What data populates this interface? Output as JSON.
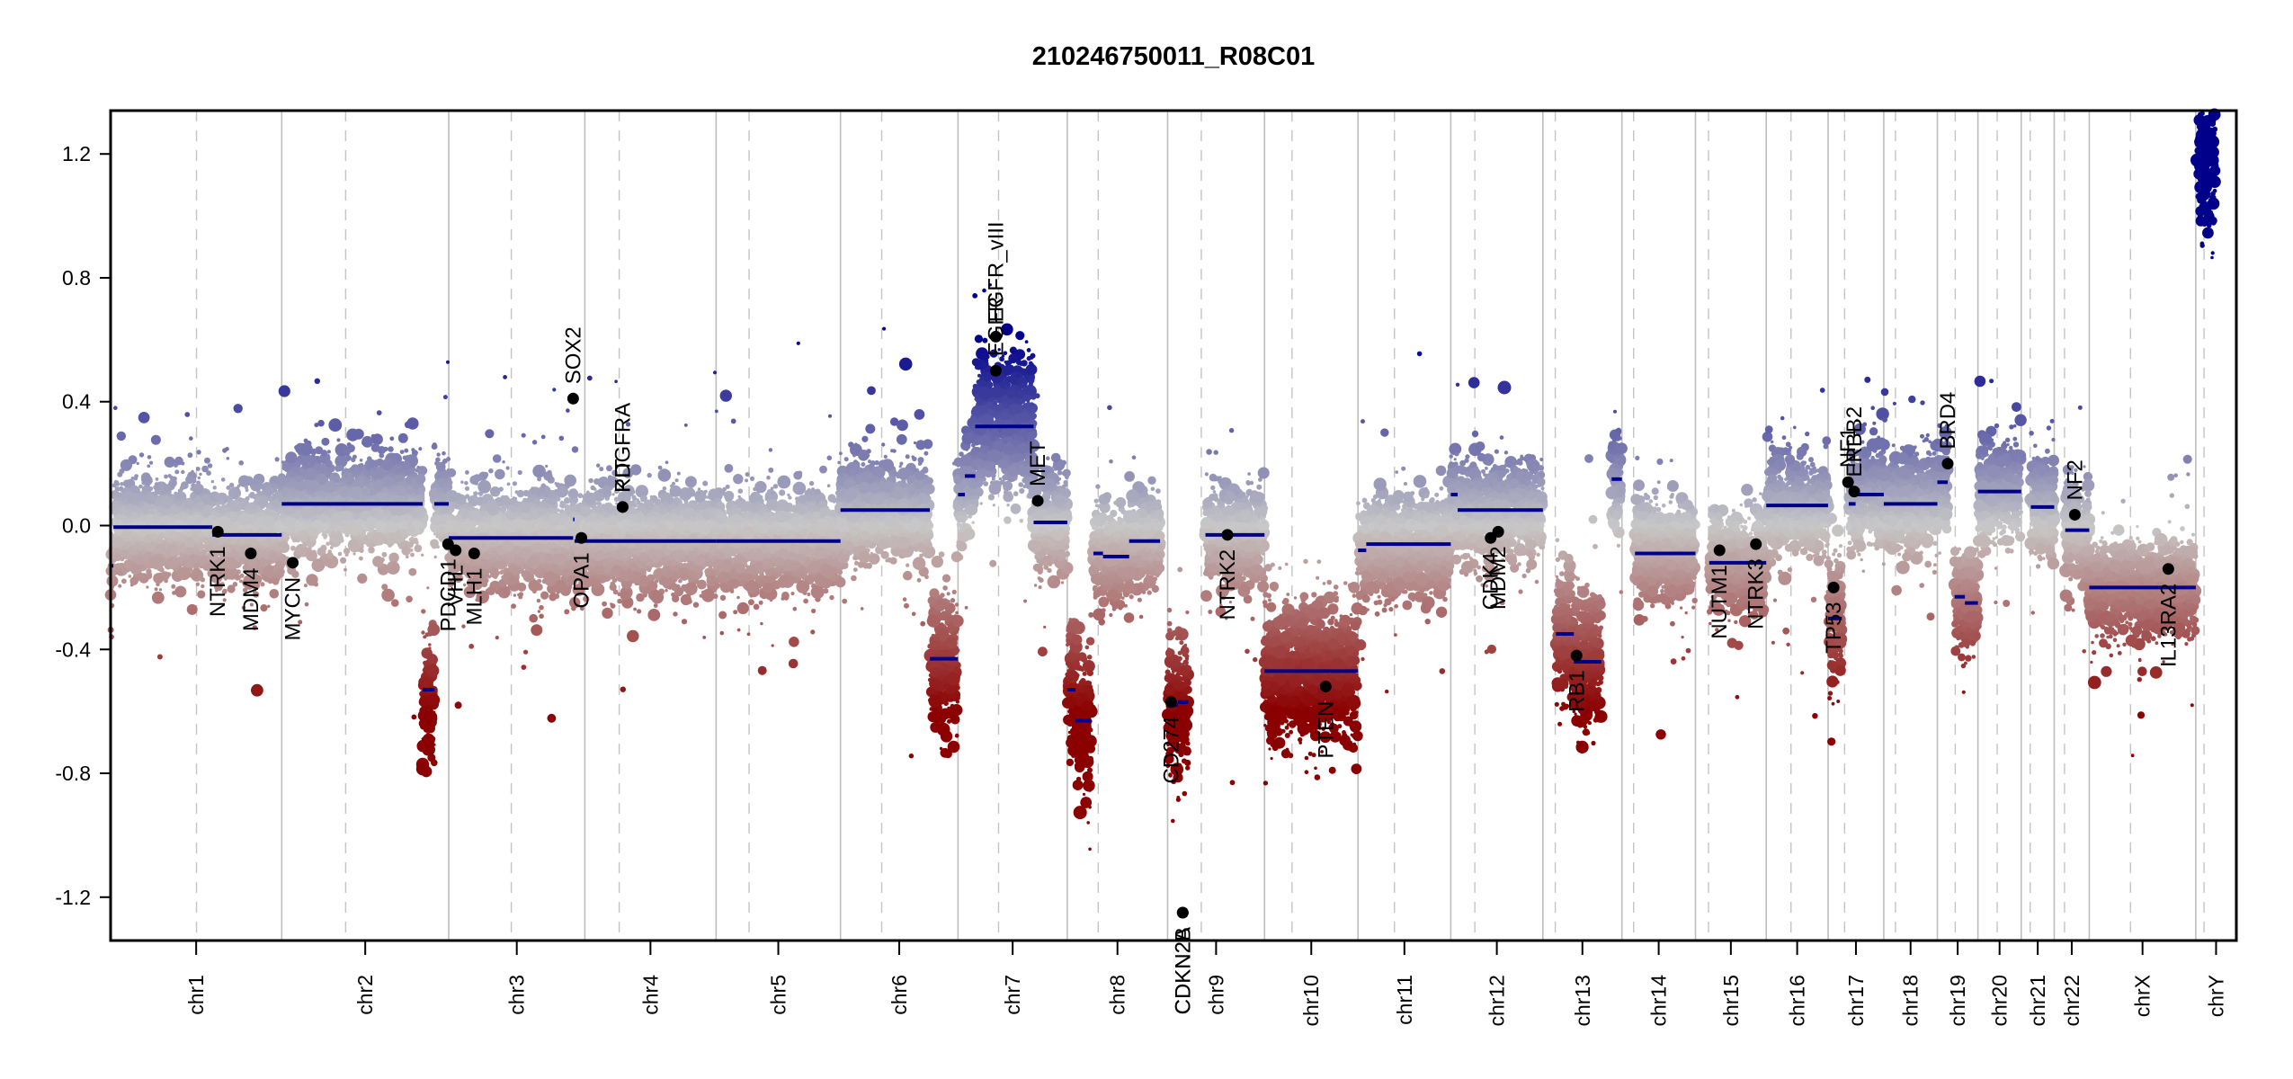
{
  "chart_data": {
    "type": "scatter",
    "title": "210246750011_R08C01",
    "xlabel": "",
    "ylabel": "",
    "ylim": [
      -1.34,
      1.34
    ],
    "yticks": [
      "-1.2",
      "-0.8",
      "-0.4",
      "0.0",
      "0.4",
      "0.8",
      "1.2"
    ],
    "ytick_values": [
      -1.2,
      -0.8,
      -0.4,
      0.0,
      0.4,
      0.8,
      1.2
    ],
    "grid": "chromosome boundaries (solid gray) and centromeres (dashed gray)",
    "colors": {
      "gain": "#00008b",
      "neutral": "#c8c8c8",
      "loss": "#8b0000",
      "segment": "#00008b",
      "gene_marker": "#000000",
      "boundary": "#bebebe"
    },
    "chromosomes": [
      {
        "name": "chr1",
        "length_mb": 249,
        "centromere_mb": 125,
        "segments": [
          [
            0,
            4,
            -0.13
          ],
          [
            4,
            148,
            -0.005
          ],
          [
            148,
            249,
            -0.03
          ]
        ],
        "bins_cn_profile": [
          [
            0,
            148,
            0.05
          ],
          [
            148,
            249,
            -0.02
          ]
        ]
      },
      {
        "name": "chr2",
        "length_mb": 243,
        "centromere_mb": 93,
        "segments": [
          [
            0,
            205,
            0.07
          ],
          [
            205,
            222,
            -0.53
          ],
          [
            222,
            243,
            0.07
          ]
        ]
      },
      {
        "name": "chr3",
        "length_mb": 198,
        "centromere_mb": 91,
        "segments": [
          [
            0,
            181,
            -0.04
          ],
          [
            181,
            183,
            0.02
          ],
          [
            183,
            198,
            -0.05
          ]
        ]
      },
      {
        "name": "chr4",
        "length_mb": 191,
        "centromere_mb": 50,
        "segments": [
          [
            0,
            191,
            -0.05
          ]
        ]
      },
      {
        "name": "chr5",
        "length_mb": 181,
        "centromere_mb": 48,
        "segments": [
          [
            0,
            181,
            -0.05
          ]
        ]
      },
      {
        "name": "chr6",
        "length_mb": 171,
        "centromere_mb": 60,
        "segments": [
          [
            0,
            130,
            0.05
          ],
          [
            130,
            171,
            -0.43
          ]
        ]
      },
      {
        "name": "chr7",
        "length_mb": 159,
        "centromere_mb": 59,
        "segments": [
          [
            0,
            10,
            0.1
          ],
          [
            10,
            25,
            0.16
          ],
          [
            25,
            110,
            0.32
          ],
          [
            110,
            159,
            0.01
          ]
        ]
      },
      {
        "name": "chr8",
        "length_mb": 146,
        "centromere_mb": 45,
        "segments": [
          [
            0,
            12,
            -0.53
          ],
          [
            12,
            35,
            -0.63
          ],
          [
            38,
            52,
            -0.09
          ],
          [
            52,
            90,
            -0.1
          ],
          [
            90,
            135,
            -0.05
          ]
        ]
      },
      {
        "name": "chr9",
        "length_mb": 141,
        "centromere_mb": 49,
        "segments": [
          [
            0,
            15,
            -0.58
          ],
          [
            15,
            30,
            -0.57
          ],
          [
            55,
            141,
            -0.03
          ]
        ]
      },
      {
        "name": "chr10",
        "length_mb": 136,
        "centromere_mb": 40,
        "segments": [
          [
            0,
            136,
            -0.47
          ]
        ]
      },
      {
        "name": "chr11",
        "length_mb": 135,
        "centromere_mb": 53,
        "segments": [
          [
            0,
            12,
            -0.08
          ],
          [
            12,
            135,
            -0.06
          ]
        ]
      },
      {
        "name": "chr12",
        "length_mb": 134,
        "centromere_mb": 35,
        "segments": [
          [
            0,
            10,
            0.1
          ],
          [
            10,
            134,
            0.05
          ]
        ]
      },
      {
        "name": "chr13",
        "length_mb": 115,
        "centromere_mb": 18,
        "segments": [
          [
            19,
            45,
            -0.35
          ],
          [
            45,
            85,
            -0.44
          ],
          [
            100,
            115,
            0.15
          ]
        ]
      },
      {
        "name": "chr14",
        "length_mb": 107,
        "centromere_mb": 17,
        "segments": [
          [
            19,
            107,
            -0.09
          ]
        ]
      },
      {
        "name": "chr15",
        "length_mb": 103,
        "centromere_mb": 19,
        "segments": [
          [
            20,
            103,
            -0.12
          ]
        ]
      },
      {
        "name": "chr16",
        "length_mb": 90,
        "centromere_mb": 36,
        "segments": [
          [
            0,
            90,
            0.065
          ]
        ]
      },
      {
        "name": "chr17",
        "length_mb": 81,
        "centromere_mb": 24,
        "segments": [
          [
            0,
            20,
            -0.3
          ],
          [
            30,
            40,
            0.07
          ],
          [
            40,
            81,
            0.1
          ]
        ]
      },
      {
        "name": "chr18",
        "length_mb": 78,
        "centromere_mb": 17,
        "segments": [
          [
            0,
            78,
            0.07
          ]
        ]
      },
      {
        "name": "chr19",
        "length_mb": 59,
        "centromere_mb": 26,
        "segments": [
          [
            0,
            15,
            0.14
          ],
          [
            25,
            40,
            -0.23
          ],
          [
            40,
            59,
            -0.25
          ]
        ]
      },
      {
        "name": "chr20",
        "length_mb": 63,
        "centromere_mb": 28,
        "segments": [
          [
            0,
            63,
            0.11
          ]
        ]
      },
      {
        "name": "chr21",
        "length_mb": 48,
        "centromere_mb": 13,
        "segments": [
          [
            14,
            48,
            0.06
          ]
        ]
      },
      {
        "name": "chr22",
        "length_mb": 51,
        "centromere_mb": 15,
        "segments": [
          [
            16,
            51,
            -0.015
          ]
        ]
      },
      {
        "name": "chrX",
        "length_mb": 155,
        "centromere_mb": 60,
        "segments": [
          [
            0,
            155,
            -0.2
          ]
        ]
      },
      {
        "name": "chrY",
        "length_mb": 59,
        "centromere_mb": 12,
        "segments": [
          [
            2,
            28,
            1.19
          ]
        ]
      }
    ],
    "genes": [
      {
        "name": "NTRK1",
        "chrom": "chr1",
        "pos_mb": 156,
        "value": -0.02
      },
      {
        "name": "MDM4",
        "chrom": "chr1",
        "pos_mb": 204,
        "value": -0.09
      },
      {
        "name": "MYCN",
        "chrom": "chr2",
        "pos_mb": 16,
        "value": -0.12
      },
      {
        "name": "PDCD1",
        "chrom": "chr2",
        "pos_mb": 242,
        "value": -0.06
      },
      {
        "name": "VHL",
        "chrom": "chr3",
        "pos_mb": 10,
        "value": -0.08
      },
      {
        "name": "MLH1",
        "chrom": "chr3",
        "pos_mb": 37,
        "value": -0.09
      },
      {
        "name": "SOX2",
        "chrom": "chr3",
        "pos_mb": 181,
        "value": 0.41
      },
      {
        "name": "OPA1",
        "chrom": "chr3",
        "pos_mb": 193,
        "value": -0.04
      },
      {
        "name": "PDGFRA",
        "chrom": "chr4",
        "pos_mb": 55,
        "value": 0.06
      },
      {
        "name": "KIT",
        "chrom": "chr4",
        "pos_mb": 55,
        "value": 0.06
      },
      {
        "name": "EGFR",
        "chrom": "chr7",
        "pos_mb": 55,
        "value": 0.5
      },
      {
        "name": "EGFR_vIII",
        "chrom": "chr7",
        "pos_mb": 55,
        "value": 0.61
      },
      {
        "name": "MET",
        "chrom": "chr7",
        "pos_mb": 116,
        "value": 0.08
      },
      {
        "name": "CD274",
        "chrom": "chr9",
        "pos_mb": 5,
        "value": -0.57
      },
      {
        "name": "CDKN2A",
        "chrom": "chr9",
        "pos_mb": 22,
        "value": -1.25
      },
      {
        "name": "CDKN2B",
        "chrom": "chr9",
        "pos_mb": 22,
        "value": -1.25
      },
      {
        "name": "NTRK2",
        "chrom": "chr9",
        "pos_mb": 87,
        "value": -0.03
      },
      {
        "name": "PTEN",
        "chrom": "chr10",
        "pos_mb": 89,
        "value": -0.52
      },
      {
        "name": "CDK4",
        "chrom": "chr12",
        "pos_mb": 58,
        "value": -0.04
      },
      {
        "name": "MDM2",
        "chrom": "chr12",
        "pos_mb": 69,
        "value": -0.02
      },
      {
        "name": "RB1",
        "chrom": "chr13",
        "pos_mb": 49,
        "value": -0.42
      },
      {
        "name": "NUTM1",
        "chrom": "chr15",
        "pos_mb": 35,
        "value": -0.08
      },
      {
        "name": "NTRK3",
        "chrom": "chr15",
        "pos_mb": 88,
        "value": -0.06
      },
      {
        "name": "TP53",
        "chrom": "chr17",
        "pos_mb": 8,
        "value": -0.2
      },
      {
        "name": "NF1",
        "chrom": "chr17",
        "pos_mb": 29,
        "value": 0.14
      },
      {
        "name": "ERBB2",
        "chrom": "chr17",
        "pos_mb": 38,
        "value": 0.11
      },
      {
        "name": "BRD4",
        "chrom": "chr19",
        "pos_mb": 15,
        "value": 0.2
      },
      {
        "name": "NF2",
        "chrom": "chr22",
        "pos_mb": 30,
        "value": 0.035
      },
      {
        "name": "IL13RA2",
        "chrom": "chrX",
        "pos_mb": 115,
        "value": -0.14
      }
    ]
  }
}
